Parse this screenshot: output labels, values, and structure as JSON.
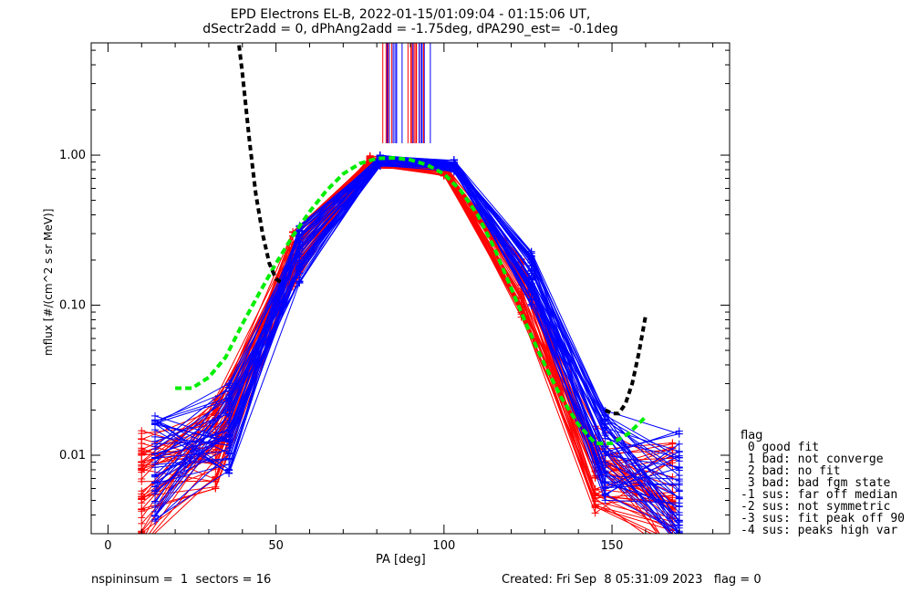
{
  "chart_data": {
    "type": "scatter",
    "title_line1": "EPD Electrons EL-B, 2022-01-15/01:09:04 - 01:15:06 UT,",
    "title_line2": "dSectr2add = 0, dPhAng2add = -1.75deg, dPA290_est=  -0.1deg",
    "xlabel": "PA [deg]",
    "ylabel": "mflux [#/(cm^2 s sr MeV)]",
    "xlim": [
      -5,
      185
    ],
    "ylim": [
      0.003,
      5.6
    ],
    "yscale": "log",
    "xticks": [
      0,
      50,
      100,
      150
    ],
    "yticks": [
      {
        "value": 0.01,
        "label": "0.01"
      },
      {
        "value": 0.1,
        "label": "0.10"
      },
      {
        "value": 1.0,
        "label": "1.00"
      }
    ],
    "colors": {
      "red": "#ff0000",
      "blue": "#0000ff",
      "green": "#00ee00",
      "black": "#000000"
    },
    "pa_red": [
      10,
      32,
      55,
      78,
      100,
      123,
      145,
      168
    ],
    "pa_blue": [
      14,
      36,
      57,
      81,
      103,
      126,
      148,
      170
    ],
    "profile_red_typical": [
      0.006,
      0.012,
      0.2,
      0.9,
      0.8,
      0.13,
      0.008,
      0.005
    ],
    "profile_blue_typical": [
      0.008,
      0.015,
      0.22,
      0.93,
      0.85,
      0.15,
      0.01,
      0.006
    ],
    "fit_curve_green": {
      "x": [
        20,
        25,
        30,
        35,
        40,
        45,
        50,
        55,
        60,
        65,
        70,
        75,
        80,
        85,
        90,
        95,
        100,
        105,
        110,
        115,
        120,
        125,
        130,
        135,
        140,
        145,
        150,
        155,
        160
      ],
      "y": [
        0.028,
        0.028,
        0.033,
        0.045,
        0.075,
        0.12,
        0.19,
        0.29,
        0.42,
        0.58,
        0.75,
        0.88,
        0.95,
        0.96,
        0.93,
        0.86,
        0.75,
        0.58,
        0.4,
        0.24,
        0.13,
        0.07,
        0.04,
        0.024,
        0.016,
        0.012,
        0.012,
        0.014,
        0.018
      ]
    },
    "fit_curve_black": {
      "x": [
        39,
        40,
        42,
        44,
        46,
        48,
        50,
        52,
        148,
        150,
        152,
        154,
        156,
        158,
        160
      ],
      "y": [
        5.4,
        3.5,
        1.3,
        0.55,
        0.3,
        0.19,
        0.15,
        0.14,
        0.02,
        0.019,
        0.019,
        0.022,
        0.03,
        0.048,
        0.085
      ]
    },
    "peak_markers_x_range": [
      80,
      96
    ],
    "peak_markers_y_range": [
      1.2,
      5.6
    ],
    "legend_title": "flag",
    "legend": [
      " 0 good fit",
      " 1 bad: not converge",
      " 2 bad: no fit",
      " 3 bad: bad fgm state",
      "-1 sus: far off median",
      "-2 sus: not symmetric",
      "-3 sus: fit peak off 90",
      "-4 sus: peaks high var"
    ]
  },
  "footer": {
    "left": "nspininsum =  1  sectors = 16",
    "right": "Created: Fri Sep  8 05:31:09 2023   flag = 0"
  }
}
